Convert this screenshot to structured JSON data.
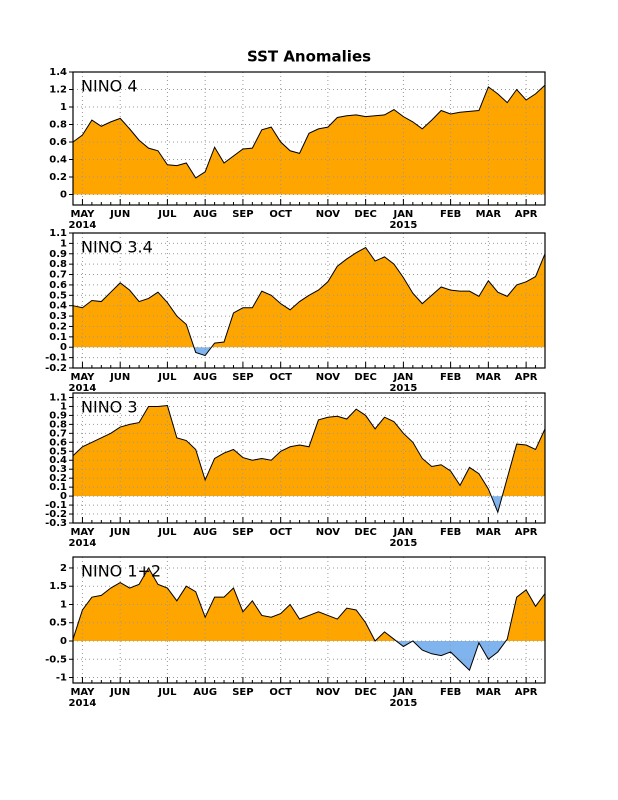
{
  "title": "SST Anomalies",
  "chart_data": [
    {
      "type": "area",
      "label": "NINO 4",
      "categories": [
        null,
        "MAY",
        null,
        null,
        null,
        "JUN",
        null,
        null,
        null,
        null,
        "JUL",
        null,
        null,
        null,
        "AUG",
        null,
        null,
        null,
        "SEP",
        null,
        null,
        null,
        "OCT",
        null,
        null,
        null,
        null,
        "NOV",
        null,
        null,
        null,
        "DEC",
        null,
        null,
        null,
        "JAN",
        null,
        null,
        null,
        null,
        "FEB",
        null,
        null,
        null,
        "MAR",
        null,
        null,
        null,
        "APR",
        null,
        null
      ],
      "years": [
        null,
        "2014",
        null,
        null,
        null,
        null,
        null,
        null,
        null,
        null,
        null,
        null,
        null,
        null,
        null,
        null,
        null,
        null,
        null,
        null,
        null,
        null,
        null,
        null,
        null,
        null,
        null,
        null,
        null,
        null,
        null,
        null,
        null,
        null,
        null,
        "2015",
        null,
        null,
        null,
        null,
        null,
        null,
        null,
        null,
        null,
        null,
        null,
        null,
        null,
        null,
        null
      ],
      "values": [
        0.6,
        0.68,
        0.85,
        0.78,
        0.83,
        0.87,
        0.75,
        0.62,
        0.53,
        0.5,
        0.34,
        0.33,
        0.36,
        0.19,
        0.26,
        0.54,
        0.36,
        0.44,
        0.52,
        0.53,
        0.74,
        0.77,
        0.6,
        0.5,
        0.47,
        0.7,
        0.75,
        0.77,
        0.88,
        0.9,
        0.91,
        0.89,
        0.9,
        0.91,
        0.97,
        0.89,
        0.83,
        0.75,
        0.85,
        0.96,
        0.92,
        0.94,
        0.95,
        0.96,
        1.23,
        1.15,
        1.05,
        1.2,
        1.08,
        1.15,
        1.25
      ],
      "ylim": [
        -0.12,
        1.4
      ],
      "yticks": [
        0,
        0.2,
        0.4,
        0.6,
        0.8,
        1,
        1.2,
        1.4
      ],
      "colors": {
        "positive": "#ffa500",
        "negative": "#80b4ee"
      },
      "grid": true
    },
    {
      "type": "area",
      "label": "NINO 3.4",
      "categories": [
        null,
        "MAY",
        null,
        null,
        null,
        "JUN",
        null,
        null,
        null,
        null,
        "JUL",
        null,
        null,
        null,
        "AUG",
        null,
        null,
        null,
        "SEP",
        null,
        null,
        null,
        "OCT",
        null,
        null,
        null,
        null,
        "NOV",
        null,
        null,
        null,
        "DEC",
        null,
        null,
        null,
        "JAN",
        null,
        null,
        null,
        null,
        "FEB",
        null,
        null,
        null,
        "MAR",
        null,
        null,
        null,
        "APR",
        null,
        null
      ],
      "years": [
        null,
        "2014",
        null,
        null,
        null,
        null,
        null,
        null,
        null,
        null,
        null,
        null,
        null,
        null,
        null,
        null,
        null,
        null,
        null,
        null,
        null,
        null,
        null,
        null,
        null,
        null,
        null,
        null,
        null,
        null,
        null,
        null,
        null,
        null,
        null,
        "2015",
        null,
        null,
        null,
        null,
        null,
        null,
        null,
        null,
        null,
        null,
        null,
        null,
        null,
        null,
        null
      ],
      "values": [
        0.4,
        0.38,
        0.45,
        0.44,
        0.53,
        0.62,
        0.55,
        0.44,
        0.47,
        0.53,
        0.43,
        0.3,
        0.22,
        -0.05,
        -0.08,
        0.04,
        0.05,
        0.33,
        0.38,
        0.38,
        0.54,
        0.5,
        0.42,
        0.36,
        0.44,
        0.5,
        0.55,
        0.63,
        0.78,
        0.85,
        0.91,
        0.96,
        0.83,
        0.87,
        0.8,
        0.67,
        0.52,
        0.42,
        0.5,
        0.58,
        0.55,
        0.54,
        0.54,
        0.49,
        0.64,
        0.53,
        0.49,
        0.6,
        0.63,
        0.68,
        0.9
      ],
      "ylim": [
        -0.2,
        1.1
      ],
      "yticks": [
        -0.2,
        -0.1,
        0,
        0.1,
        0.2,
        0.3,
        0.4,
        0.5,
        0.6,
        0.7,
        0.8,
        0.9,
        1,
        1.1
      ],
      "colors": {
        "positive": "#ffa500",
        "negative": "#80b4ee"
      },
      "grid": true
    },
    {
      "type": "area",
      "label": "NINO 3",
      "categories": [
        null,
        "MAY",
        null,
        null,
        null,
        "JUN",
        null,
        null,
        null,
        null,
        "JUL",
        null,
        null,
        null,
        "AUG",
        null,
        null,
        null,
        "SEP",
        null,
        null,
        null,
        "OCT",
        null,
        null,
        null,
        null,
        "NOV",
        null,
        null,
        null,
        "DEC",
        null,
        null,
        null,
        "JAN",
        null,
        null,
        null,
        null,
        "FEB",
        null,
        null,
        null,
        "MAR",
        null,
        null,
        null,
        "APR",
        null,
        null
      ],
      "years": [
        null,
        "2014",
        null,
        null,
        null,
        null,
        null,
        null,
        null,
        null,
        null,
        null,
        null,
        null,
        null,
        null,
        null,
        null,
        null,
        null,
        null,
        null,
        null,
        null,
        null,
        null,
        null,
        null,
        null,
        null,
        null,
        null,
        null,
        null,
        null,
        "2015",
        null,
        null,
        null,
        null,
        null,
        null,
        null,
        null,
        null,
        null,
        null,
        null,
        null,
        null,
        null
      ],
      "values": [
        0.45,
        0.55,
        0.6,
        0.65,
        0.7,
        0.77,
        0.8,
        0.82,
        1.0,
        1.0,
        1.01,
        0.65,
        0.62,
        0.52,
        0.18,
        0.42,
        0.48,
        0.52,
        0.43,
        0.4,
        0.42,
        0.4,
        0.5,
        0.55,
        0.57,
        0.55,
        0.85,
        0.88,
        0.89,
        0.86,
        0.97,
        0.9,
        0.75,
        0.88,
        0.83,
        0.7,
        0.6,
        0.42,
        0.33,
        0.35,
        0.28,
        0.12,
        0.32,
        0.25,
        0.08,
        -0.18,
        0.2,
        0.58,
        0.57,
        0.52,
        0.75
      ],
      "ylim": [
        -0.3,
        1.15
      ],
      "yticks": [
        -0.3,
        -0.2,
        -0.1,
        0,
        0.1,
        0.2,
        0.3,
        0.4,
        0.5,
        0.6,
        0.7,
        0.8,
        0.9,
        1,
        1.1
      ],
      "colors": {
        "positive": "#ffa500",
        "negative": "#80b4ee"
      },
      "grid": true
    },
    {
      "type": "area",
      "label": "NINO 1+2",
      "categories": [
        null,
        "MAY",
        null,
        null,
        null,
        "JUN",
        null,
        null,
        null,
        null,
        "JUL",
        null,
        null,
        null,
        "AUG",
        null,
        null,
        null,
        "SEP",
        null,
        null,
        null,
        "OCT",
        null,
        null,
        null,
        null,
        "NOV",
        null,
        null,
        null,
        "DEC",
        null,
        null,
        null,
        "JAN",
        null,
        null,
        null,
        null,
        "FEB",
        null,
        null,
        null,
        "MAR",
        null,
        null,
        null,
        "APR",
        null,
        null
      ],
      "years": [
        null,
        "2014",
        null,
        null,
        null,
        null,
        null,
        null,
        null,
        null,
        null,
        null,
        null,
        null,
        null,
        null,
        null,
        null,
        null,
        null,
        null,
        null,
        null,
        null,
        null,
        null,
        null,
        null,
        null,
        null,
        null,
        null,
        null,
        null,
        null,
        "2015",
        null,
        null,
        null,
        null,
        null,
        null,
        null,
        null,
        null,
        null,
        null,
        null,
        null,
        null,
        null
      ],
      "values": [
        0.05,
        0.85,
        1.2,
        1.25,
        1.45,
        1.6,
        1.45,
        1.55,
        2.0,
        1.55,
        1.45,
        1.1,
        1.5,
        1.35,
        0.65,
        1.2,
        1.2,
        1.45,
        0.8,
        1.1,
        0.7,
        0.65,
        0.75,
        1.0,
        0.6,
        0.7,
        0.8,
        0.7,
        0.6,
        0.9,
        0.85,
        0.5,
        0.0,
        0.25,
        0.05,
        -0.15,
        0.0,
        -0.25,
        -0.35,
        -0.4,
        -0.3,
        -0.55,
        -0.8,
        -0.05,
        -0.5,
        -0.3,
        0.05,
        1.2,
        1.4,
        0.95,
        1.3
      ],
      "ylim": [
        -1.15,
        2.3
      ],
      "yticks": [
        -1,
        -0.5,
        0,
        0.5,
        1,
        1.5,
        2
      ],
      "colors": {
        "positive": "#ffa500",
        "negative": "#80b4ee"
      },
      "grid": true
    }
  ]
}
